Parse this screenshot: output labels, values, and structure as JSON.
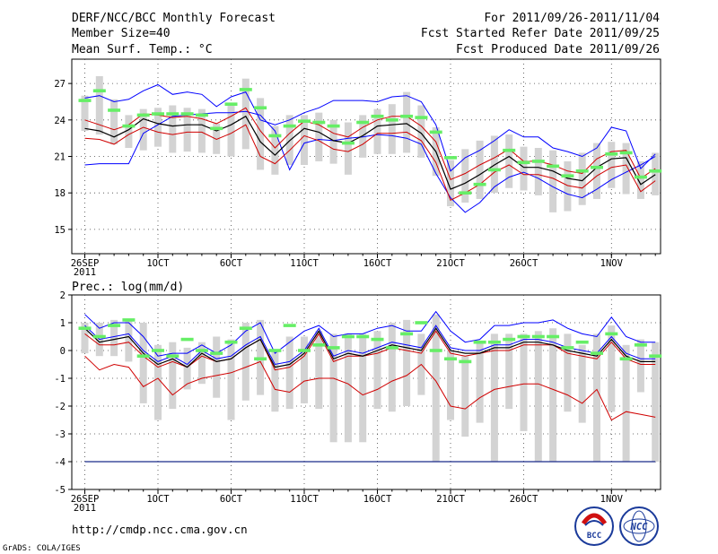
{
  "header": {
    "title": "DERF/NCC/BCC Monthly Forecast",
    "member_size": "Member Size=40",
    "variable": "Mean Surf. Temp.: °C",
    "period": "For 2011/09/26-2011/11/04",
    "refer_date": "Fcst Started Refer Date 2011/09/25",
    "produced_date": "Fcst Produced Date 2011/09/26"
  },
  "footer": {
    "url": "http://cmdp.ncc.cma.gov.cn",
    "credit": "GrADS: COLA/IGES",
    "logo_left": "BCC",
    "logo_right": "NCC"
  },
  "colors": {
    "box": "#d3d3d3",
    "max_min": "#0000ff",
    "std": "#d00000",
    "mean": "#000000",
    "ensemble_mark": "#66ee66"
  },
  "chart_data": [
    {
      "type": "box-plume",
      "title": "Mean Surf. Temp.: °C",
      "x_tick_labels": [
        "26SEP",
        "1OCT",
        "6OCT",
        "11OCT",
        "16OCT",
        "21OCT",
        "26OCT",
        "1NOV"
      ],
      "x_tick_days": [
        0,
        5,
        10,
        15,
        20,
        25,
        30,
        36
      ],
      "year_label": "2011",
      "days": 40,
      "ylim": [
        13,
        29
      ],
      "yticks": [
        15,
        18,
        21,
        24,
        27
      ],
      "grid": true,
      "series": [
        {
          "name": "max",
          "values": [
            20.3,
            20.4,
            20.4,
            20.4,
            22.9,
            23.6,
            24.3,
            24.4,
            24.5,
            24.6,
            24.6,
            24.7,
            24.4,
            23.1,
            19.9,
            22.1,
            22.4,
            22.3,
            22.5,
            22.6,
            22.8,
            22.7,
            22.5,
            22.0,
            19.6,
            17.6,
            16.4,
            17.2,
            18.5,
            19.3,
            19.7,
            19.2,
            18.5,
            17.9,
            17.6,
            18.3,
            19.1,
            19.7,
            20.3,
            21.0
          ]
        },
        {
          "name": "p_minus_sd",
          "values": [
            22.5,
            22.4,
            22.0,
            22.8,
            23.4,
            23.0,
            22.8,
            23.0,
            23.0,
            22.4,
            22.9,
            23.6,
            21.0,
            20.4,
            21.5,
            22.7,
            22.3,
            21.6,
            21.4,
            22.0,
            22.9,
            22.9,
            23.0,
            22.3,
            20.5,
            17.4,
            18.0,
            18.7,
            19.7,
            20.3,
            19.5,
            19.5,
            19.2,
            18.6,
            18.4,
            19.4,
            20.1,
            20.3,
            18.1,
            19.0
          ]
        },
        {
          "name": "mean",
          "values": [
            23.3,
            23.1,
            22.6,
            23.2,
            24.1,
            23.7,
            23.5,
            23.6,
            23.6,
            23.1,
            23.6,
            24.3,
            22.2,
            21.1,
            22.3,
            23.3,
            23.0,
            22.3,
            22.1,
            22.7,
            23.5,
            23.6,
            23.7,
            22.9,
            21.4,
            18.3,
            18.8,
            19.5,
            20.3,
            21.0,
            20.1,
            20.1,
            19.8,
            19.2,
            19.0,
            20.1,
            20.8,
            20.9,
            18.7,
            19.5
          ]
        },
        {
          "name": "p_plus_sd",
          "values": [
            24.0,
            23.6,
            23.2,
            23.6,
            24.5,
            24.4,
            24.2,
            24.3,
            24.1,
            23.7,
            24.3,
            25.0,
            23.1,
            21.7,
            22.9,
            23.9,
            23.6,
            22.9,
            22.6,
            23.4,
            24.0,
            24.3,
            24.3,
            23.5,
            22.2,
            19.1,
            19.6,
            20.3,
            20.9,
            21.6,
            20.6,
            20.6,
            20.3,
            19.8,
            19.6,
            20.8,
            21.4,
            21.5,
            19.2,
            20.0
          ]
        },
        {
          "name": "min",
          "values": [
            25.8,
            26.0,
            25.5,
            25.7,
            26.4,
            26.9,
            26.1,
            26.3,
            26.1,
            25.1,
            25.9,
            26.3,
            24.0,
            23.6,
            24.0,
            24.6,
            25.0,
            25.6,
            25.6,
            25.6,
            25.5,
            25.9,
            26.0,
            25.5,
            23.6,
            19.8,
            20.9,
            21.5,
            22.3,
            23.2,
            22.6,
            22.6,
            21.7,
            21.4,
            21.0,
            21.7,
            23.4,
            23.1,
            20.0,
            21.2
          ]
        },
        {
          "name": "box_high",
          "values": [
            26.0,
            27.6,
            25.7,
            24.4,
            24.9,
            25.0,
            25.2,
            25.0,
            24.9,
            23.7,
            25.4,
            27.4,
            25.8,
            23.5,
            24.4,
            24.4,
            24.6,
            24.0,
            23.8,
            24.4,
            24.9,
            25.3,
            26.3,
            25.2,
            23.4,
            20.7,
            21.6,
            22.3,
            22.7,
            22.8,
            21.8,
            21.7,
            21.5,
            20.6,
            21.3,
            22.1,
            22.2,
            22.1,
            20.6,
            21.3
          ]
        },
        {
          "name": "box_low",
          "values": [
            23.1,
            22.8,
            22.0,
            21.7,
            21.5,
            21.8,
            21.3,
            21.4,
            21.3,
            21.2,
            21.0,
            21.6,
            19.9,
            19.5,
            20.3,
            20.3,
            20.6,
            20.4,
            19.5,
            20.9,
            21.2,
            21.2,
            21.3,
            20.9,
            19.4,
            16.9,
            17.2,
            17.5,
            18.0,
            18.4,
            18.2,
            17.8,
            16.4,
            16.5,
            17.0,
            17.5,
            18.4,
            17.9,
            17.5,
            17.8
          ]
        },
        {
          "name": "ensemble_mark",
          "values": [
            25.6,
            26.4,
            24.8,
            23.5,
            24.4,
            24.5,
            24.5,
            24.5,
            24.4,
            23.3,
            25.3,
            26.5,
            25.0,
            22.7,
            23.5,
            23.9,
            23.8,
            23.5,
            22.1,
            23.8,
            24.3,
            24.0,
            24.3,
            24.2,
            23.0,
            20.9,
            18.0,
            18.7,
            19.9,
            21.5,
            20.5,
            20.6,
            20.2,
            19.4,
            19.8,
            20.1,
            21.2,
            21.3,
            19.3,
            19.8
          ]
        }
      ]
    },
    {
      "type": "box-plume",
      "title": "Prec.: log(mm/d)",
      "x_tick_labels": [
        "26SEP",
        "1OCT",
        "6OCT",
        "11OCT",
        "16OCT",
        "21OCT",
        "26OCT",
        "1NOV"
      ],
      "x_tick_days": [
        0,
        5,
        10,
        15,
        20,
        25,
        30,
        36
      ],
      "year_label": "2011",
      "days": 40,
      "ylim": [
        -5,
        2
      ],
      "yticks": [
        -5,
        -4,
        -3,
        -2,
        -1,
        0,
        1,
        2
      ],
      "grid": true,
      "series": [
        {
          "name": "max",
          "values": [
            1.3,
            0.8,
            1.0,
            1.0,
            0.5,
            -0.2,
            -0.1,
            -0.1,
            0.2,
            -0.1,
            0.2,
            0.7,
            1.0,
            -0.1,
            0.3,
            0.7,
            0.9,
            0.5,
            0.6,
            0.6,
            0.8,
            0.9,
            0.7,
            0.7,
            1.4,
            0.7,
            0.3,
            0.4,
            0.9,
            0.9,
            1.0,
            1.0,
            1.1,
            0.8,
            0.6,
            0.5,
            1.2,
            0.5,
            0.3,
            0.3
          ]
        },
        {
          "name": "p_plus_sd",
          "values": [
            -0.2,
            -0.7,
            -0.5,
            -0.6,
            -1.3,
            -1.0,
            -1.6,
            -1.2,
            -1.0,
            -0.9,
            -0.8,
            -0.6,
            -0.4,
            -1.4,
            -1.5,
            -1.1,
            -1.0,
            -1.0,
            -1.2,
            -1.6,
            -1.4,
            -1.1,
            -0.9,
            -0.5,
            -1.1,
            -2.0,
            -2.1,
            -1.7,
            -1.4,
            -1.3,
            -1.2,
            -1.2,
            -1.4,
            -1.6,
            -1.9,
            -1.4,
            -2.5,
            -2.2,
            -2.3,
            -2.4
          ]
        },
        {
          "name": "mean",
          "values": [
            0.8,
            0.3,
            0.4,
            0.5,
            -0.1,
            -0.5,
            -0.3,
            -0.6,
            -0.1,
            -0.4,
            -0.3,
            0.1,
            0.4,
            -0.6,
            -0.5,
            -0.1,
            0.7,
            -0.3,
            -0.1,
            -0.2,
            0.0,
            0.2,
            0.1,
            0.0,
            0.8,
            0.0,
            -0.1,
            -0.1,
            0.1,
            0.1,
            0.3,
            0.3,
            0.2,
            0.0,
            -0.1,
            -0.2,
            0.4,
            -0.2,
            -0.4,
            -0.4
          ]
        },
        {
          "name": "p_minus_sd",
          "values": [
            0.6,
            0.2,
            0.2,
            0.3,
            -0.2,
            -0.6,
            -0.4,
            -0.6,
            -0.2,
            -0.4,
            -0.3,
            0.1,
            0.4,
            -0.7,
            -0.6,
            -0.2,
            0.6,
            -0.4,
            -0.2,
            -0.2,
            -0.1,
            0.1,
            0.0,
            -0.1,
            0.7,
            -0.1,
            -0.2,
            -0.1,
            0.0,
            0.0,
            0.2,
            0.2,
            0.2,
            -0.1,
            -0.2,
            -0.3,
            0.3,
            -0.3,
            -0.5,
            -0.5
          ]
        },
        {
          "name": "min",
          "values": [
            0.9,
            0.4,
            0.5,
            0.6,
            0.0,
            -0.4,
            -0.2,
            -0.5,
            0.0,
            -0.3,
            -0.2,
            0.2,
            0.5,
            -0.5,
            -0.4,
            0.0,
            0.8,
            -0.2,
            0.0,
            -0.1,
            0.1,
            0.3,
            0.2,
            0.1,
            0.9,
            0.1,
            0.0,
            0.0,
            0.2,
            0.2,
            0.4,
            0.4,
            0.3,
            0.1,
            0.0,
            -0.1,
            0.5,
            -0.1,
            -0.3,
            -0.3
          ]
        },
        {
          "name": "box_high",
          "values": [
            1.0,
            1.0,
            1.1,
            1.1,
            1.0,
            0.2,
            0.3,
            0.1,
            0.3,
            0.5,
            0.4,
            1.0,
            1.1,
            0.0,
            0.5,
            0.5,
            0.7,
            0.6,
            0.6,
            0.6,
            0.7,
            1.0,
            1.1,
            0.6,
            1.3,
            0.0,
            -0.2,
            0.3,
            0.6,
            0.6,
            0.6,
            0.7,
            0.8,
            0.6,
            0.2,
            0.6,
            0.9,
            0.2,
            0.4,
            0.3
          ]
        },
        {
          "name": "box_low",
          "values": [
            -0.1,
            -0.2,
            -0.2,
            -0.4,
            -1.9,
            -2.5,
            -2.1,
            -1.4,
            -1.2,
            -1.7,
            -2.5,
            -1.8,
            -1.6,
            -2.2,
            -2.1,
            -1.9,
            -2.1,
            -3.3,
            -3.3,
            -3.3,
            -2.1,
            -2.2,
            -2.0,
            -1.6,
            -4.0,
            -2.5,
            -3.1,
            -2.6,
            -4.0,
            -2.1,
            -2.9,
            -4.0,
            -4.0,
            -2.2,
            -2.6,
            -4.0,
            -2.2,
            -4.0,
            -1.5,
            -4.0
          ]
        },
        {
          "name": "ensemble_mark",
          "values": [
            0.8,
            0.5,
            0.9,
            1.1,
            -0.2,
            0.0,
            -0.2,
            0.4,
            0.0,
            -0.1,
            0.3,
            0.8,
            -0.3,
            0.0,
            0.9,
            0.0,
            0.2,
            0.1,
            0.5,
            0.5,
            0.4,
            0.1,
            0.6,
            1.0,
            0.0,
            -0.3,
            -0.4,
            0.3,
            0.3,
            0.4,
            0.5,
            0.5,
            0.5,
            0.1,
            0.3,
            -0.1,
            0.6,
            -0.3,
            0.2,
            -0.2
          ]
        }
      ],
      "dry_line": -4
    }
  ]
}
